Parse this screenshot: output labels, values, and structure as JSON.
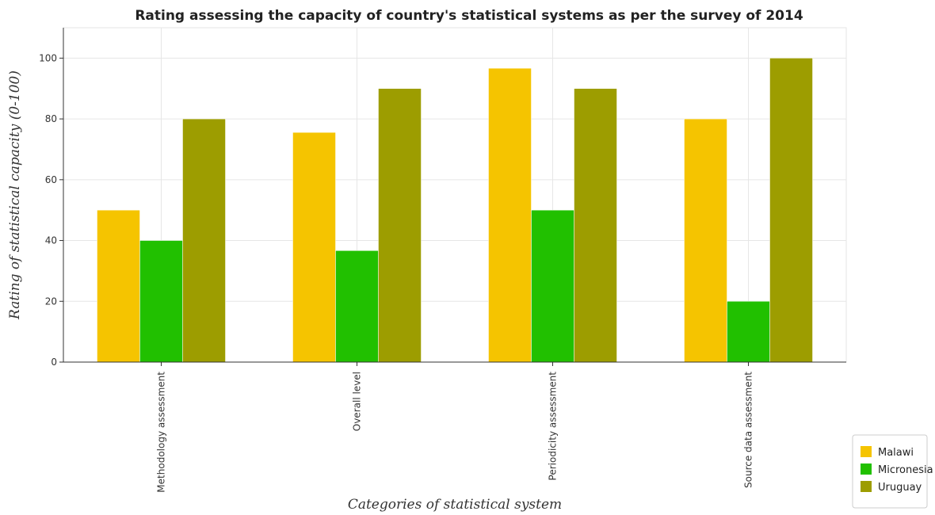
{
  "chart_data": {
    "type": "bar",
    "title": "Rating assessing the capacity of country's statistical systems as per the survey of 2014",
    "xlabel": "Categories of statistical system",
    "ylabel": "Rating of statistical capacity (0-100)",
    "categories": [
      "Methodology assessment",
      "Overall level",
      "Periodicity assessment",
      "Source data assessment"
    ],
    "series": [
      {
        "name": "Malawi",
        "color": "#f5c400",
        "values": [
          50,
          75.56,
          96.67,
          80
        ]
      },
      {
        "name": "Micronesia",
        "color": "#21c000",
        "values": [
          40,
          36.67,
          50,
          20
        ]
      },
      {
        "name": "Uruguay",
        "color": "#9d9d00",
        "values": [
          80,
          90,
          90,
          100
        ]
      }
    ],
    "ylim": [
      0,
      110
    ],
    "yticks": [
      0,
      20,
      40,
      60,
      80,
      100
    ],
    "grid": true,
    "legend_position": "bottom-right"
  }
}
